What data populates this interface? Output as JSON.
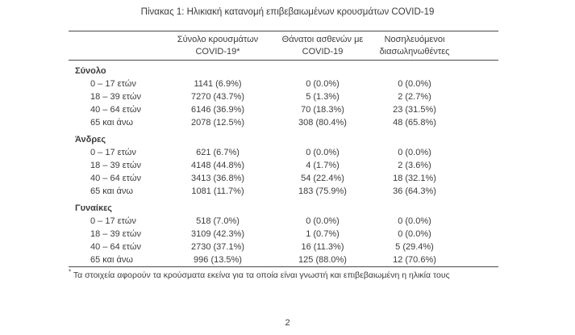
{
  "page": {
    "title": "Πίνακας 1: Ηλικιακή κατανομή επιβεβαιωμένων κρουσμάτων COVID-19",
    "footnote_marker": "*",
    "footnote_text": "Τα στοιχεία αφορούν τα κρούσματα εκείνα για τα οποία είναι γνωστή και επιβεβαιωμένη η ηλικία τους",
    "page_number": "2"
  },
  "colors": {
    "background": "#ffffff",
    "text": "#3c3c3c",
    "rule": "#4a4a4a"
  },
  "table": {
    "header": {
      "cases": [
        "Σύνολο κρουσμάτων",
        "COVID-19*"
      ],
      "deaths": [
        "Θάνατοι ασθενών με",
        "COVID-19"
      ],
      "intubated": [
        "Νοσηλευόμενοι",
        "διασωληνωθέντες"
      ]
    },
    "sections": [
      {
        "label": "Σύνολο",
        "rows": [
          {
            "age": "0 – 17 ετών",
            "cases": "1141 (6.9%)",
            "deaths": "0 (0.0%)",
            "intubated": "0 (0.0%)"
          },
          {
            "age": "18 – 39 ετών",
            "cases": "7270 (43.7%)",
            "deaths": "5 (1.3%)",
            "intubated": "2 (2.7%)"
          },
          {
            "age": "40 – 64 ετών",
            "cases": "6146 (36.9%)",
            "deaths": "70 (18.3%)",
            "intubated": "23 (31.5%)"
          },
          {
            "age": "65 και άνω",
            "cases": "2078 (12.5%)",
            "deaths": "308 (80.4%)",
            "intubated": "48 (65.8%)"
          }
        ]
      },
      {
        "label": "Άνδρες",
        "rows": [
          {
            "age": "0 – 17 ετών",
            "cases": "621 (6.7%)",
            "deaths": "0 (0.0%)",
            "intubated": "0 (0.0%)"
          },
          {
            "age": "18 – 39 ετών",
            "cases": "4148 (44.8%)",
            "deaths": "4 (1.7%)",
            "intubated": "2 (3.6%)"
          },
          {
            "age": "40 – 64 ετών",
            "cases": "3413 (36.8%)",
            "deaths": "54 (22.4%)",
            "intubated": "18 (32.1%)"
          },
          {
            "age": "65 και άνω",
            "cases": "1081 (11.7%)",
            "deaths": "183 (75.9%)",
            "intubated": "36 (64.3%)"
          }
        ]
      },
      {
        "label": "Γυναίκες",
        "rows": [
          {
            "age": "0 – 17 ετών",
            "cases": "518 (7.0%)",
            "deaths": "0 (0.0%)",
            "intubated": "0 (0.0%)"
          },
          {
            "age": "18 – 39 ετών",
            "cases": "3109 (42.3%)",
            "deaths": "1 (0.7%)",
            "intubated": "0 (0.0%)"
          },
          {
            "age": "40 – 64 ετών",
            "cases": "2730 (37.1%)",
            "deaths": "16 (11.3%)",
            "intubated": "5 (29.4%)"
          },
          {
            "age": "65 και άνω",
            "cases": "996 (13.5%)",
            "deaths": "125 (88.0%)",
            "intubated": "12 (70.6%)"
          }
        ]
      }
    ]
  }
}
